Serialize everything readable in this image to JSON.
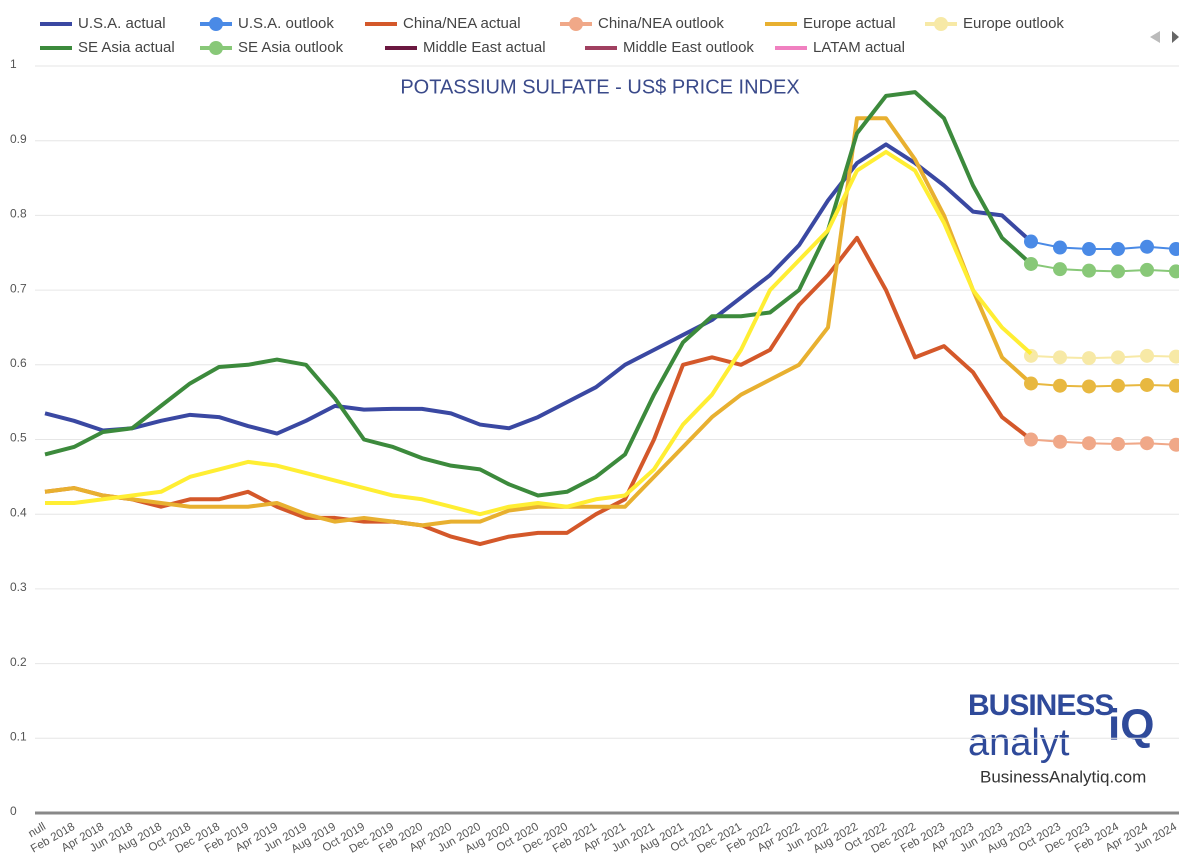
{
  "chart_data": {
    "type": "line",
    "title": "POTASSIUM SULFATE - US$ PRICE INDEX",
    "categories": [
      "null",
      "Feb 2018",
      "Apr 2018",
      "Jun 2018",
      "Aug 2018",
      "Oct 2018",
      "Dec 2018",
      "Feb 2019",
      "Apr 2019",
      "Jun 2019",
      "Aug 2019",
      "Oct 2019",
      "Dec 2019",
      "Feb 2020",
      "Apr 2020",
      "Jun 2020",
      "Aug 2020",
      "Oct 2020",
      "Dec 2020",
      "Feb 2021",
      "Apr 2021",
      "Jun 2021",
      "Aug 2021",
      "Oct 2021",
      "Dec 2021",
      "Feb 2022",
      "Apr 2022",
      "Jun 2022",
      "Aug 2022",
      "Oct 2022",
      "Dec 2022",
      "Feb 2023",
      "Apr 2023",
      "Jun 2023",
      "Aug 2023",
      "Oct 2023",
      "Dec 2023",
      "Feb 2024",
      "Apr 2024",
      "Jun 2024"
    ],
    "ylim": [
      0,
      1
    ],
    "yticks": [
      0,
      0.1,
      0.2,
      0.3,
      0.4,
      0.5,
      0.6,
      0.7,
      0.8,
      0.9,
      1
    ],
    "grid": true,
    "series": [
      {
        "name": "U.S.A. actual",
        "color": "#3a48a2",
        "markers": false,
        "values": [
          0.535,
          0.525,
          0.512,
          0.515,
          0.525,
          0.533,
          0.53,
          0.518,
          0.508,
          0.525,
          0.545,
          0.54,
          0.541,
          0.541,
          0.535,
          0.52,
          0.515,
          0.53,
          0.55,
          0.57,
          0.6,
          0.62,
          0.64,
          0.66,
          0.69,
          0.72,
          0.76,
          0.82,
          0.87,
          0.895,
          0.87,
          0.84,
          0.805,
          0.8,
          0.765,
          null,
          null,
          null,
          null,
          null
        ]
      },
      {
        "name": "U.S.A. outlook",
        "color": "#4a8ae6",
        "markers": true,
        "values": [
          null,
          null,
          null,
          null,
          null,
          null,
          null,
          null,
          null,
          null,
          null,
          null,
          null,
          null,
          null,
          null,
          null,
          null,
          null,
          null,
          null,
          null,
          null,
          null,
          null,
          null,
          null,
          null,
          null,
          null,
          null,
          null,
          null,
          null,
          0.765,
          0.757,
          0.755,
          0.755,
          0.758,
          0.755
        ]
      },
      {
        "name": "China/NEA actual",
        "color": "#d4582a",
        "markers": false,
        "values": [
          0.43,
          0.435,
          0.425,
          0.42,
          0.41,
          0.42,
          0.42,
          0.43,
          0.41,
          0.395,
          0.395,
          0.39,
          0.39,
          0.385,
          0.37,
          0.36,
          0.37,
          0.375,
          0.375,
          0.4,
          0.42,
          0.5,
          0.6,
          0.61,
          0.6,
          0.62,
          0.68,
          0.72,
          0.77,
          0.7,
          0.61,
          0.625,
          0.59,
          0.53,
          0.5,
          null,
          null,
          null,
          null,
          null
        ]
      },
      {
        "name": "China/NEA outlook",
        "color": "#f0a888",
        "markers": true,
        "values": [
          null,
          null,
          null,
          null,
          null,
          null,
          null,
          null,
          null,
          null,
          null,
          null,
          null,
          null,
          null,
          null,
          null,
          null,
          null,
          null,
          null,
          null,
          null,
          null,
          null,
          null,
          null,
          null,
          null,
          null,
          null,
          null,
          null,
          null,
          0.5,
          0.497,
          0.495,
          0.494,
          0.495,
          0.493
        ]
      },
      {
        "name": "Europe actual",
        "color": "#e8b030",
        "markers": false,
        "values": [
          0.43,
          0.435,
          0.425,
          0.42,
          0.415,
          0.41,
          0.41,
          0.41,
          0.415,
          0.4,
          0.39,
          0.395,
          0.39,
          0.385,
          0.39,
          0.39,
          0.405,
          0.41,
          0.41,
          0.41,
          0.41,
          0.45,
          0.49,
          0.53,
          0.56,
          0.58,
          0.6,
          0.65,
          0.93,
          0.93,
          0.875,
          0.8,
          0.7,
          0.61,
          0.575,
          null,
          null,
          null,
          null,
          null
        ]
      },
      {
        "name": "Europe outlook",
        "color": "#f7e9a6",
        "markers": true,
        "values": [
          null,
          null,
          null,
          null,
          null,
          null,
          null,
          null,
          null,
          null,
          null,
          null,
          null,
          null,
          null,
          null,
          null,
          null,
          null,
          null,
          null,
          null,
          null,
          null,
          null,
          null,
          null,
          null,
          null,
          null,
          null,
          null,
          null,
          null,
          0.612,
          0.61,
          0.609,
          0.61,
          0.612,
          0.611
        ]
      },
      {
        "name": "SE Asia actual",
        "color": "#3c8a3c",
        "markers": false,
        "values": [
          0.48,
          0.49,
          0.51,
          0.515,
          0.545,
          0.575,
          0.597,
          0.6,
          0.607,
          0.6,
          0.555,
          0.5,
          0.49,
          0.475,
          0.465,
          0.46,
          0.44,
          0.425,
          0.43,
          0.45,
          0.48,
          0.56,
          0.63,
          0.665,
          0.665,
          0.67,
          0.7,
          0.78,
          0.91,
          0.96,
          0.965,
          0.93,
          0.84,
          0.77,
          0.735,
          null,
          null,
          null,
          null,
          null
        ]
      },
      {
        "name": "SE Asia outlook",
        "color": "#88c878",
        "markers": true,
        "values": [
          null,
          null,
          null,
          null,
          null,
          null,
          null,
          null,
          null,
          null,
          null,
          null,
          null,
          null,
          null,
          null,
          null,
          null,
          null,
          null,
          null,
          null,
          null,
          null,
          null,
          null,
          null,
          null,
          null,
          null,
          null,
          null,
          null,
          null,
          0.735,
          0.728,
          0.726,
          0.725,
          0.727,
          0.725
        ]
      },
      {
        "name": "Middle East actual",
        "color": "#6b1840",
        "markers": false,
        "values": [
          null,
          null,
          null,
          null,
          null,
          null,
          null,
          null,
          null,
          null,
          null,
          null,
          null,
          null,
          null,
          null,
          null,
          null,
          null,
          null,
          null,
          null,
          null,
          null,
          null,
          null,
          null,
          null,
          null,
          null,
          null,
          null,
          null,
          null,
          null,
          null,
          null,
          null,
          null,
          null
        ]
      },
      {
        "name": "Middle East outlook",
        "color": "#a04060",
        "markers": false,
        "values": [
          null,
          null,
          null,
          null,
          null,
          null,
          null,
          null,
          null,
          null,
          null,
          null,
          null,
          null,
          null,
          null,
          null,
          null,
          null,
          null,
          null,
          null,
          null,
          null,
          null,
          null,
          null,
          null,
          null,
          null,
          null,
          null,
          null,
          null,
          null,
          null,
          null,
          null,
          null,
          null
        ]
      },
      {
        "name": "LATAM actual",
        "color": "#f080c0",
        "markers": false,
        "values": [
          null,
          null,
          null,
          null,
          null,
          null,
          null,
          null,
          null,
          null,
          null,
          null,
          null,
          null,
          null,
          null,
          null,
          null,
          null,
          null,
          null,
          null,
          null,
          null,
          null,
          null,
          null,
          null,
          null,
          null,
          null,
          null,
          null,
          null,
          null,
          null,
          null,
          null,
          null,
          null
        ]
      },
      {
        "color": "#ffee33",
        "markers": false,
        "values": [
          0.415,
          0.415,
          0.42,
          0.425,
          0.43,
          0.45,
          0.46,
          0.47,
          0.465,
          0.455,
          0.445,
          0.435,
          0.425,
          0.42,
          0.41,
          0.4,
          0.41,
          0.415,
          0.41,
          0.42,
          0.425,
          0.46,
          0.52,
          0.56,
          0.62,
          0.7,
          0.74,
          0.78,
          0.86,
          0.885,
          0.86,
          0.79,
          0.7,
          0.65,
          0.615,
          null,
          null,
          null,
          null,
          null
        ]
      },
      {
        "color": "#e8b840",
        "markers": true,
        "values": [
          null,
          null,
          null,
          null,
          null,
          null,
          null,
          null,
          null,
          null,
          null,
          null,
          null,
          null,
          null,
          null,
          null,
          null,
          null,
          null,
          null,
          null,
          null,
          null,
          null,
          null,
          null,
          null,
          null,
          null,
          null,
          null,
          null,
          null,
          0.575,
          0.572,
          0.571,
          0.572,
          0.573,
          0.572
        ]
      }
    ]
  },
  "logo": {
    "line1": "BUSINESS",
    "line2": "analyt",
    "mark": "iQ",
    "url": "BusinessAnalytiq.com"
  }
}
